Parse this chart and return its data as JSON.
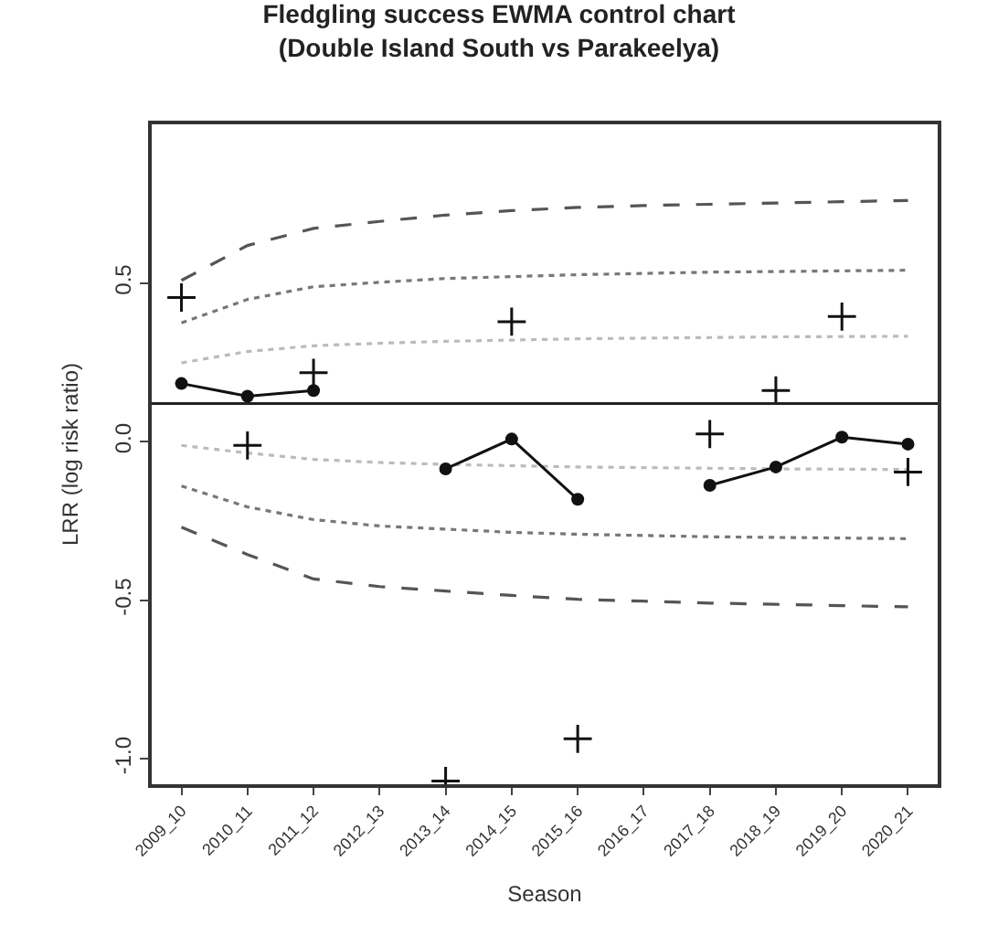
{
  "chart_data": {
    "type": "line",
    "title": "Fledgling success EWMA control chart\n(Double Island South vs Parakeelya)",
    "xlabel": "Season",
    "ylabel": "LRR (log risk ratio)",
    "categories": [
      "2009_10",
      "2010_11",
      "2011_12",
      "2012_13",
      "2013_14",
      "2014_15",
      "2015_16",
      "2016_17",
      "2017_18",
      "2018_19",
      "2019_20",
      "2020_21"
    ],
    "ylim": [
      -1.08,
      1.0
    ],
    "yticks": [
      {
        "value": -1,
        "label": "-1.0"
      },
      -0.5,
      {
        "value": 0,
        "label": "0.0"
      },
      0.5
    ],
    "grid": false,
    "ref_lines": [
      {
        "axis": "y",
        "value": 0.12,
        "color": "#222222",
        "line_style": "solid"
      }
    ],
    "series": [
      {
        "color": "#555555",
        "line_style": "dashed",
        "marker": "none",
        "values": [
          0.508,
          0.618,
          0.672,
          0.694,
          0.714,
          0.728,
          0.738,
          0.744,
          0.748,
          0.752,
          0.756,
          0.76
        ]
      },
      {
        "color": "#777777",
        "line_style": "dotted",
        "marker": "none",
        "values": [
          0.374,
          0.448,
          0.488,
          0.502,
          0.514,
          0.52,
          0.526,
          0.53,
          0.534,
          0.536,
          0.538,
          0.54
        ]
      },
      {
        "color": "#bbbbbb",
        "line_style": "dotted",
        "marker": "none",
        "values": [
          0.248,
          0.284,
          0.302,
          0.31,
          0.316,
          0.32,
          0.324,
          0.326,
          0.328,
          0.33,
          0.331,
          0.332
        ]
      },
      {
        "color": "#bbbbbb",
        "line_style": "dotted",
        "marker": "none",
        "values": [
          -0.012,
          -0.036,
          -0.056,
          -0.066,
          -0.072,
          -0.076,
          -0.08,
          -0.082,
          -0.084,
          -0.086,
          -0.087,
          -0.088
        ]
      },
      {
        "color": "#777777",
        "line_style": "dotted",
        "marker": "none",
        "values": [
          -0.14,
          -0.206,
          -0.246,
          -0.266,
          -0.276,
          -0.286,
          -0.292,
          -0.296,
          -0.3,
          -0.302,
          -0.304,
          -0.306
        ]
      },
      {
        "color": "#555555",
        "line_style": "dashed",
        "marker": "none",
        "values": [
          -0.27,
          -0.356,
          -0.433,
          -0.457,
          -0.471,
          -0.485,
          -0.497,
          -0.503,
          -0.509,
          -0.513,
          -0.517,
          -0.521
        ]
      },
      {
        "type": "scatter",
        "color": "#111111",
        "marker": "cross",
        "values": [
          0.454,
          -0.012,
          0.217,
          null,
          -1.07,
          0.378,
          -0.937,
          null,
          0.024,
          0.161,
          0.394,
          -0.096
        ]
      },
      {
        "color": "#111111",
        "line_style": "solid",
        "marker": "circle",
        "values": [
          0.183,
          0.143,
          0.161,
          null,
          -0.086,
          0.008,
          -0.182,
          null,
          -0.138,
          -0.08,
          0.014,
          -0.008
        ]
      }
    ]
  }
}
